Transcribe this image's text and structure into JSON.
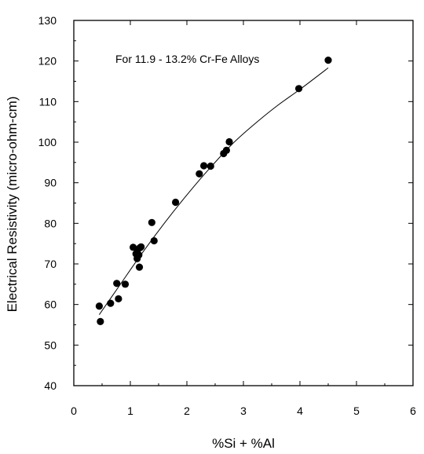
{
  "chart_data": {
    "type": "scatter",
    "title": "",
    "annotation": "For 11.9 - 13.2% Cr-Fe Alloys",
    "xlabel": "%Si + %Al",
    "ylabel": "Electrical Resistivity (micro-ohm-cm)",
    "xlim": [
      0,
      6
    ],
    "ylim": [
      40,
      130
    ],
    "xticks": [
      0,
      1,
      2,
      3,
      4,
      5,
      6
    ],
    "yticks": [
      40,
      50,
      60,
      70,
      80,
      90,
      100,
      110,
      120,
      130
    ],
    "grid": false,
    "legend": "none",
    "marker_color": "#000000",
    "series": [
      {
        "kind": "points",
        "x": [
          0.45,
          0.47,
          0.65,
          0.76,
          0.79,
          0.91,
          1.05,
          1.1,
          1.12,
          1.13,
          1.15,
          1.16,
          1.17,
          1.19,
          1.38,
          1.42,
          1.8,
          2.22,
          2.3,
          2.42,
          2.65,
          2.7,
          2.75,
          3.98,
          4.5
        ],
        "y": [
          59.6,
          55.8,
          60.3,
          65.2,
          61.4,
          65.0,
          74.1,
          72.5,
          71.3,
          73.5,
          72.2,
          69.2,
          74.0,
          74.2,
          80.2,
          75.7,
          85.2,
          92.2,
          94.2,
          94.1,
          97.2,
          98.0,
          100.1,
          113.2,
          120.2
        ]
      },
      {
        "kind": "fit-curve",
        "x": [
          0.45,
          0.8,
          1.2,
          1.6,
          2.0,
          2.4,
          2.8,
          3.2,
          3.6,
          4.0,
          4.5
        ],
        "y": [
          57.5,
          64.5,
          72.5,
          80.0,
          87.0,
          93.5,
          99.5,
          104.5,
          109.0,
          113.0,
          118.3
        ]
      }
    ]
  }
}
